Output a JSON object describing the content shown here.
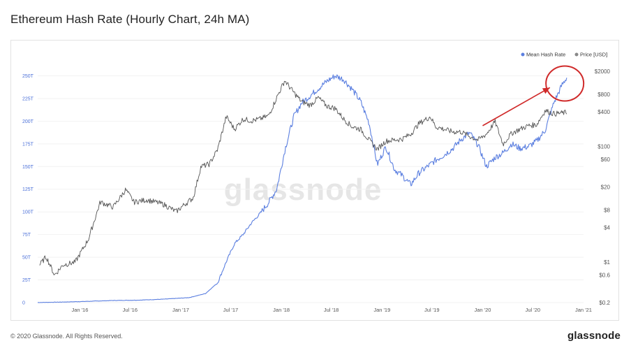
{
  "title": "Ethereum Hash Rate (Hourly Chart, 24h MA)",
  "footer": {
    "copyright": "© 2020 Glassnode. All Rights Reserved.",
    "brand": "glassnode"
  },
  "watermark": "glassnode",
  "chart_data": {
    "type": "line",
    "title": "Ethereum Hash Rate (Hourly Chart, 24h MA)",
    "x_ticks": [
      "Jan '16",
      "Jul '16",
      "Jan '17",
      "Jul '17",
      "Jan '18",
      "Jul '18",
      "Jan '19",
      "Jul '19",
      "Jan '20",
      "Jul '20",
      "Jan '21"
    ],
    "x_range": [
      "2015-08-01",
      "2021-01-01"
    ],
    "y_left": {
      "ticks": [
        "0",
        "25T",
        "50T",
        "75T",
        "100T",
        "125T",
        "150T",
        "175T",
        "200T",
        "225T",
        "250T"
      ],
      "range": [
        0,
        255
      ]
    },
    "y_right": {
      "scale": "log",
      "ticks": [
        "$0.2",
        "$0.6",
        "$1",
        "$4",
        "$8",
        "$20",
        "$60",
        "$100",
        "$400",
        "$800",
        "$2000"
      ],
      "range": [
        0.2,
        2000
      ]
    },
    "legend": {
      "placement": "top-right",
      "entries": [
        {
          "label": "Mean Hash Rate",
          "color": "#5b7fe0"
        },
        {
          "label": "Price [USD]",
          "color": "#888888"
        }
      ]
    },
    "series": [
      {
        "name": "Mean Hash Rate",
        "axis": "left",
        "color": "#5b7fe0",
        "points": [
          [
            "2015-08-01",
            0.1
          ],
          [
            "2015-11-01",
            0.6
          ],
          [
            "2016-02-01",
            1.4
          ],
          [
            "2016-05-01",
            2.3
          ],
          [
            "2016-08-01",
            2.7
          ],
          [
            "2016-11-01",
            3.8
          ],
          [
            "2017-02-01",
            5.5
          ],
          [
            "2017-04-01",
            10
          ],
          [
            "2017-05-15",
            22
          ],
          [
            "2017-06-15",
            45
          ],
          [
            "2017-07-15",
            65
          ],
          [
            "2017-08-15",
            75
          ],
          [
            "2017-09-15",
            88
          ],
          [
            "2017-10-15",
            98
          ],
          [
            "2017-11-15",
            110
          ],
          [
            "2017-12-15",
            125
          ],
          [
            "2018-01-15",
            170
          ],
          [
            "2018-02-15",
            205
          ],
          [
            "2018-03-15",
            220
          ],
          [
            "2018-04-15",
            228
          ],
          [
            "2018-05-15",
            236
          ],
          [
            "2018-06-15",
            244
          ],
          [
            "2018-07-15",
            250
          ],
          [
            "2018-08-15",
            246
          ],
          [
            "2018-09-15",
            235
          ],
          [
            "2018-10-15",
            222
          ],
          [
            "2018-11-15",
            198
          ],
          [
            "2018-12-15",
            152
          ],
          [
            "2019-01-15",
            172
          ],
          [
            "2019-02-15",
            147
          ],
          [
            "2019-03-15",
            140
          ],
          [
            "2019-04-15",
            130
          ],
          [
            "2019-05-15",
            143
          ],
          [
            "2019-06-15",
            150
          ],
          [
            "2019-07-15",
            157
          ],
          [
            "2019-08-15",
            163
          ],
          [
            "2019-09-15",
            170
          ],
          [
            "2019-10-15",
            180
          ],
          [
            "2019-11-15",
            187
          ],
          [
            "2019-12-15",
            174
          ],
          [
            "2020-01-15",
            150
          ],
          [
            "2020-02-15",
            160
          ],
          [
            "2020-03-15",
            165
          ],
          [
            "2020-04-15",
            175
          ],
          [
            "2020-05-15",
            170
          ],
          [
            "2020-06-15",
            172
          ],
          [
            "2020-07-15",
            178
          ],
          [
            "2020-08-15",
            190
          ],
          [
            "2020-09-15",
            220
          ],
          [
            "2020-10-15",
            240
          ],
          [
            "2020-11-01",
            248
          ]
        ]
      },
      {
        "name": "Price [USD]",
        "axis": "right",
        "color": "#555555",
        "points": [
          [
            "2015-08-08",
            0.9
          ],
          [
            "2015-09-01",
            1.25
          ],
          [
            "2015-10-01",
            0.6
          ],
          [
            "2015-11-01",
            0.9
          ],
          [
            "2015-12-15",
            1
          ],
          [
            "2016-02-01",
            2.5
          ],
          [
            "2016-03-15",
            11
          ],
          [
            "2016-05-01",
            9
          ],
          [
            "2016-06-15",
            18
          ],
          [
            "2016-07-15",
            11
          ],
          [
            "2016-09-01",
            12
          ],
          [
            "2016-11-01",
            10
          ],
          [
            "2016-12-15",
            7.5
          ],
          [
            "2017-01-15",
            10
          ],
          [
            "2017-02-15",
            13
          ],
          [
            "2017-03-15",
            45
          ],
          [
            "2017-04-15",
            50
          ],
          [
            "2017-05-15",
            90
          ],
          [
            "2017-06-15",
            330
          ],
          [
            "2017-07-15",
            200
          ],
          [
            "2017-08-15",
            300
          ],
          [
            "2017-09-15",
            280
          ],
          [
            "2017-10-15",
            300
          ],
          [
            "2017-11-15",
            340
          ],
          [
            "2017-12-15",
            700
          ],
          [
            "2018-01-13",
            1390
          ],
          [
            "2018-02-15",
            860
          ],
          [
            "2018-03-15",
            600
          ],
          [
            "2018-04-15",
            520
          ],
          [
            "2018-05-15",
            700
          ],
          [
            "2018-06-15",
            500
          ],
          [
            "2018-07-15",
            460
          ],
          [
            "2018-08-15",
            300
          ],
          [
            "2018-09-15",
            220
          ],
          [
            "2018-10-15",
            200
          ],
          [
            "2018-11-15",
            130
          ],
          [
            "2018-12-15",
            90
          ],
          [
            "2019-01-15",
            125
          ],
          [
            "2019-03-15",
            135
          ],
          [
            "2019-04-15",
            165
          ],
          [
            "2019-05-15",
            250
          ],
          [
            "2019-06-25",
            330
          ],
          [
            "2019-07-15",
            220
          ],
          [
            "2019-09-15",
            180
          ],
          [
            "2019-10-15",
            180
          ],
          [
            "2019-11-15",
            150
          ],
          [
            "2019-12-15",
            130
          ],
          [
            "2020-01-15",
            165
          ],
          [
            "2020-02-15",
            270
          ],
          [
            "2020-03-15",
            110
          ],
          [
            "2020-04-15",
            170
          ],
          [
            "2020-05-15",
            200
          ],
          [
            "2020-06-15",
            230
          ],
          [
            "2020-07-15",
            240
          ],
          [
            "2020-08-15",
            420
          ],
          [
            "2020-09-15",
            370
          ],
          [
            "2020-10-15",
            380
          ],
          [
            "2020-11-01",
            390
          ]
        ]
      }
    ],
    "annotations": [
      {
        "type": "arrow",
        "color": "#d02a2a",
        "from": [
          "2020-01-01",
          195
        ],
        "to": [
          "2020-09-01",
          237
        ]
      },
      {
        "type": "circle",
        "color": "#d02a2a",
        "center": [
          "2020-10-20",
          240
        ]
      }
    ]
  }
}
